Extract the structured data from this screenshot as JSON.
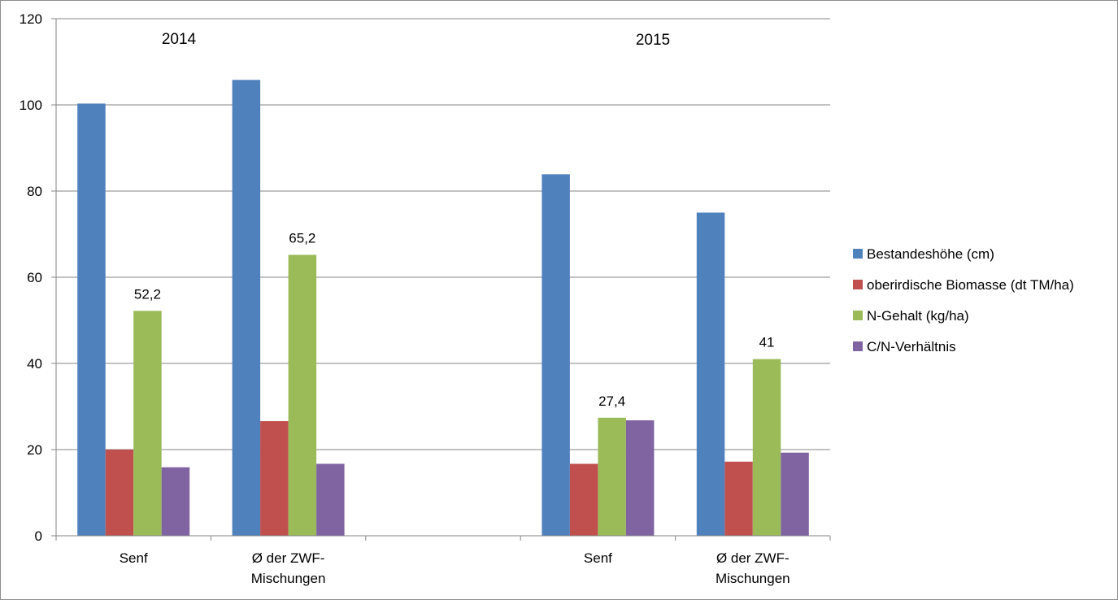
{
  "chart_data": {
    "type": "bar",
    "title": "",
    "xlabel": "",
    "ylabel": "",
    "ylim": [
      0,
      120
    ],
    "y_ticks": [
      0,
      20,
      40,
      60,
      80,
      100,
      120
    ],
    "grid": true,
    "legend_position": "right",
    "groups": [
      {
        "label": "Senf",
        "label_lines": [
          "Senf"
        ]
      },
      {
        "label": "Ø der ZWF-Mischungen",
        "label_lines": [
          "Ø der ZWF-",
          "Mischungen"
        ]
      },
      {
        "label": "",
        "label_lines": []
      },
      {
        "label": "Senf",
        "label_lines": [
          "Senf"
        ]
      },
      {
        "label": "Ø der ZWF-Mischungen",
        "label_lines": [
          "Ø der ZWF-",
          "Mischungen"
        ]
      }
    ],
    "annotations": [
      "2014",
      "2015"
    ],
    "series": [
      {
        "name": "Bestandeshöhe (cm)",
        "color": "#4F81BD",
        "values": [
          100.3,
          105.8,
          null,
          83.9,
          75.0
        ]
      },
      {
        "name": "oberirdische Biomasse (dt TM/ha)",
        "color": "#C0504D",
        "values": [
          20.0,
          26.6,
          null,
          16.7,
          17.2
        ]
      },
      {
        "name": "N-Gehalt (kg/ha)",
        "color": "#9BBB59",
        "values": [
          52.2,
          65.2,
          null,
          27.4,
          41.0
        ],
        "data_labels": [
          "52,2",
          "65,2",
          "",
          "27,4",
          "41"
        ]
      },
      {
        "name": "C/N-Verhältnis",
        "color": "#8064A2",
        "values": [
          15.9,
          16.7,
          null,
          26.8,
          19.3
        ]
      }
    ]
  }
}
